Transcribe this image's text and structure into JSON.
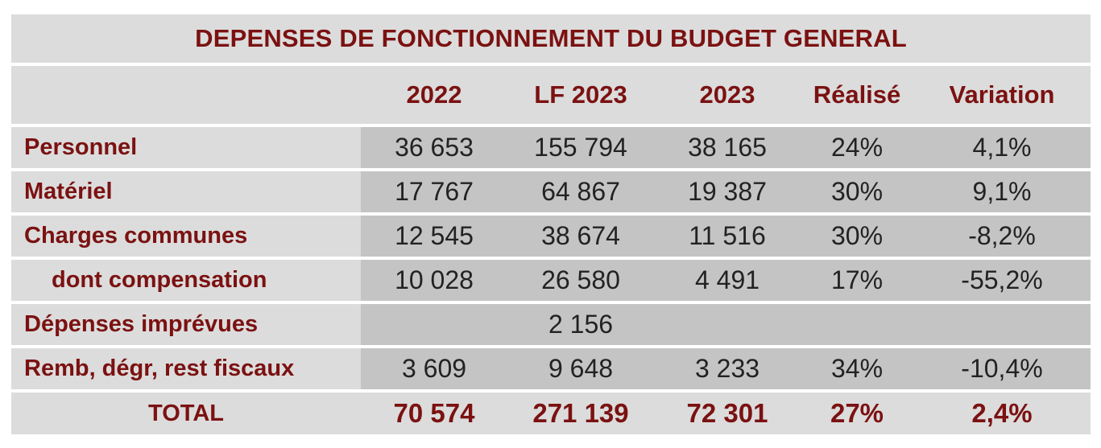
{
  "title": "DEPENSES DE FONCTIONNEMENT DU BUDGET GENERAL",
  "columns": [
    "",
    "2022",
    "LF 2023",
    "2023",
    "Réalisé",
    "Variation"
  ],
  "rows": [
    {
      "label": "Personnel",
      "values": [
        "36 653",
        "155 794",
        "38 165",
        "24%",
        "4,1%"
      ]
    },
    {
      "label": "Matériel",
      "values": [
        "17 767",
        "64 867",
        "19 387",
        "30%",
        "9,1%"
      ]
    },
    {
      "label": "Charges communes",
      "values": [
        "12 545",
        "38 674",
        "11 516",
        "30%",
        "-8,2%"
      ]
    },
    {
      "label": "dont compensation",
      "values": [
        "10 028",
        "26 580",
        "4 491",
        "17%",
        "-55,2%"
      ]
    },
    {
      "label": "Dépenses imprévues",
      "values": [
        "",
        "2 156",
        "",
        "",
        ""
      ]
    },
    {
      "label": "Remb, dégr, rest fiscaux",
      "values": [
        "3 609",
        "9 648",
        "3 233",
        "34%",
        "-10,4%"
      ]
    }
  ],
  "total": {
    "label": "TOTAL",
    "values": [
      "70 574",
      "271 139",
      "72 301",
      "27%",
      "2,4%"
    ]
  },
  "colors": {
    "heading_text": "#7b1111",
    "light_gray": "#dcdcdc",
    "value_gray": "#c4c4c4"
  }
}
